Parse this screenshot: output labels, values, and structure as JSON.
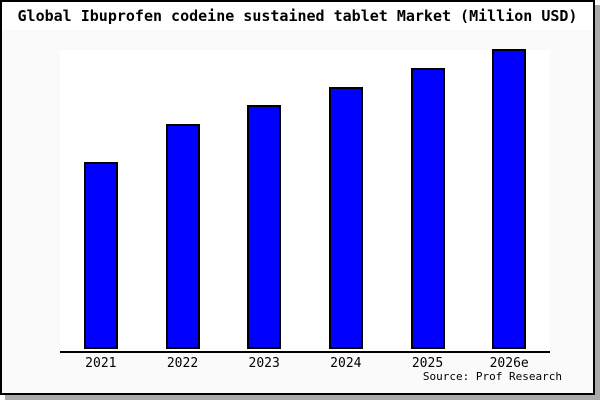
{
  "title": "Global Ibuprofen codeine sustained tablet Market (Million USD)",
  "source": "Source: Prof Research",
  "colors": {
    "bar_fill": "#0000ff",
    "bar_border": "#000000",
    "margin_background": "#fafafa",
    "plot_background": "#ffffff",
    "frame_border": "#000000",
    "frame_shadow": "#aaaaaa",
    "axis_line": "#000000",
    "text": "#000000"
  },
  "chart_data": {
    "type": "bar",
    "title": "Global Ibuprofen codeine sustained tablet Market (Million USD)",
    "categories": [
      "2021",
      "2022",
      "2023",
      "2024",
      "2025",
      "2026e"
    ],
    "values": [
      100,
      120,
      130,
      140,
      150,
      160
    ],
    "values_are_estimated_relative": true,
    "xlabel": "",
    "ylabel": "",
    "ylim": [
      0,
      160
    ],
    "grid": false,
    "legend": false,
    "y_axis_labels_visible": false,
    "annotation": "Source: Prof Research"
  }
}
